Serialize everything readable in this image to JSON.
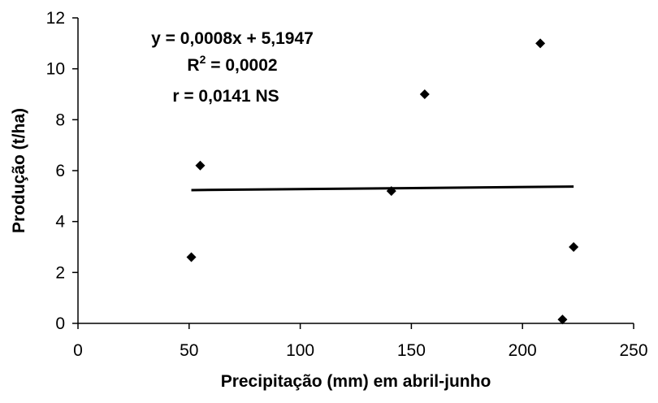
{
  "chart_data": {
    "type": "scatter",
    "title": "",
    "xlabel": "Precipitação (mm) em abril-junho",
    "ylabel": "Produção (t/ha)",
    "xlim": [
      0,
      250
    ],
    "ylim": [
      0,
      12
    ],
    "x_ticks": [
      0,
      50,
      100,
      150,
      200,
      250
    ],
    "y_ticks": [
      0,
      2,
      4,
      6,
      8,
      10,
      12
    ],
    "grid": false,
    "legend": "none",
    "marker": "diamond",
    "color": "#000000",
    "series": [
      {
        "points": [
          {
            "x": 51,
            "y": 2.6
          },
          {
            "x": 55,
            "y": 6.2
          },
          {
            "x": 141,
            "y": 5.2
          },
          {
            "x": 156,
            "y": 9.0
          },
          {
            "x": 208,
            "y": 11.0
          },
          {
            "x": 218,
            "y": 0.15
          },
          {
            "x": 223,
            "y": 3.0
          }
        ]
      }
    ],
    "trendline": {
      "slope": 0.0008,
      "intercept": 5.1947,
      "x_range": [
        51,
        223
      ]
    },
    "annotations": {
      "equation": "y = 0,0008x + 5,1947",
      "r2_prefix": "R",
      "r2_superscript": "2",
      "r2_value": " = 0,0002",
      "r_text": "r = 0,0141 NS"
    }
  }
}
